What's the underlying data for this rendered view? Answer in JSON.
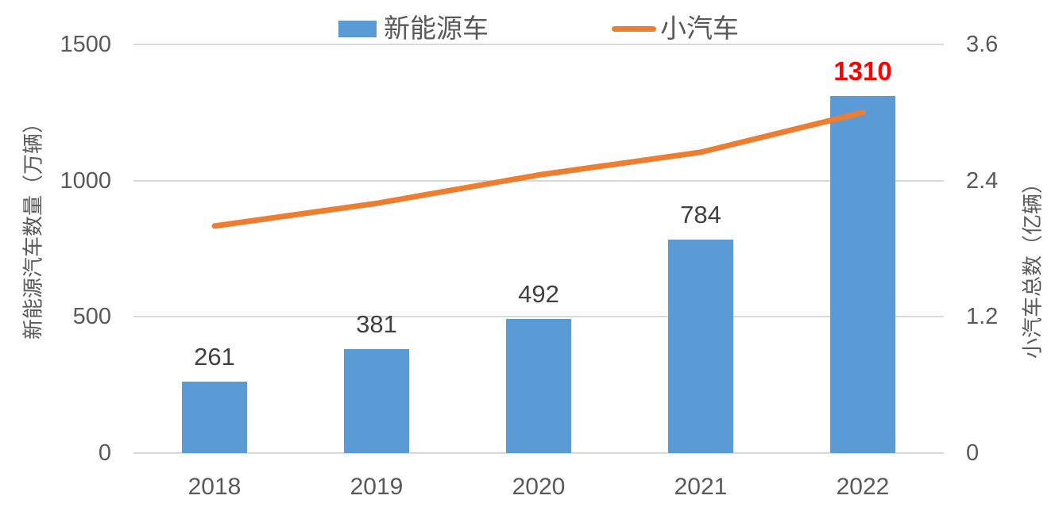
{
  "legend": {
    "items": [
      {
        "label": "新能源车",
        "marker": "square",
        "color": "#5b9bd5"
      },
      {
        "label": "小汽车",
        "marker": "line",
        "color": "#ed7d31"
      }
    ]
  },
  "chart_data": {
    "type": "combo: bar + line",
    "categories": [
      "2018",
      "2019",
      "2020",
      "2021",
      "2022"
    ],
    "series": [
      {
        "name": "新能源车",
        "type": "bar",
        "axis": "left",
        "color": "#5b9bd5",
        "values": [
          261,
          381,
          492,
          784,
          1310
        ]
      },
      {
        "name": "小汽车",
        "type": "line",
        "axis": "right",
        "color": "#ed7d31",
        "values": [
          2.0,
          2.2,
          2.45,
          2.65,
          3.0
        ]
      }
    ],
    "bar_labels": {
      "values": [
        "261",
        "381",
        "492",
        "784",
        "1310"
      ],
      "default_color": "#404040",
      "highlight_index": 4,
      "highlight_color": "#ff0000"
    },
    "left_axis": {
      "title": "新能源汽车数量（万辆）",
      "min": 0,
      "max": 1500,
      "ticks": [
        {
          "value": 0,
          "label": "0"
        },
        {
          "value": 500,
          "label": "500"
        },
        {
          "value": 1000,
          "label": "1000"
        },
        {
          "value": 1500,
          "label": "1500"
        }
      ]
    },
    "right_axis": {
      "title": "小汽车总数（亿辆）",
      "min": 0,
      "max": 3.6,
      "ticks": [
        {
          "value": 0,
          "label": "0"
        },
        {
          "value": 1.2,
          "label": "1.2"
        },
        {
          "value": 2.4,
          "label": "2.4"
        },
        {
          "value": 3.6,
          "label": "3.6"
        }
      ]
    },
    "grid": true,
    "legend_position": "top",
    "text_color": "#595959",
    "gridline_color": "#d9d9d9",
    "background": "#ffffff"
  }
}
